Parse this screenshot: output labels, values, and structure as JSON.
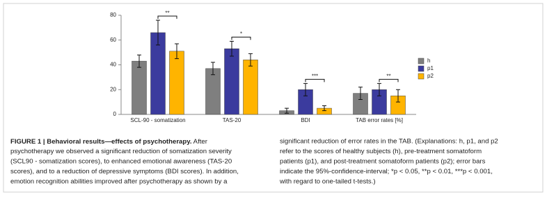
{
  "chart_data": {
    "type": "bar",
    "categories": [
      "SCL-90 - somatization",
      "TAS-20",
      "BDI",
      "TAB error rates [%]"
    ],
    "series": [
      {
        "name": "h",
        "color": "#7f7f7f",
        "values": [
          43,
          37,
          3,
          17
        ],
        "errors": [
          5,
          5,
          2,
          5
        ]
      },
      {
        "name": "p1",
        "color": "#3b3b9e",
        "values": [
          66,
          53,
          20,
          20
        ],
        "errors": [
          10,
          6,
          5,
          5
        ]
      },
      {
        "name": "p2",
        "color": "#ffb400",
        "values": [
          51,
          44,
          5,
          15
        ],
        "errors": [
          6,
          5,
          2,
          5
        ]
      }
    ],
    "significance": [
      "**",
      "*",
      "***",
      "**"
    ],
    "ylim": [
      0,
      80
    ],
    "yticks": [
      0,
      20,
      40,
      60,
      80
    ],
    "grid": false
  },
  "caption": {
    "title": "FIGURE 1 | Behavioral results—effects of psychotherapy.",
    "left_lines": [
      " After",
      "psychotherapy we observed a significant reduction of somatization severity",
      "(SCL90 - somatization scores), to enhanced emotional awareness (TAS-20",
      "scores), and to a reduction of depressive symptoms (BDI scores). In addition,",
      "emotion recognition abilities improved after psychotherapy as shown by a"
    ],
    "right_lines": [
      "significant reduction of error rates in the TAB. (Explanations: h, p1, and p2",
      "refer to the scores of healthy subjects (h), pre-treatment somatoform",
      "patients (p1), and post-treatment somatoform patients (p2); error bars",
      "indicate the 95%-confidence-interval; *p < 0.05, **p < 0.01, ***p < 0.001,",
      "with regard to one-tailed t-tests.)"
    ]
  }
}
